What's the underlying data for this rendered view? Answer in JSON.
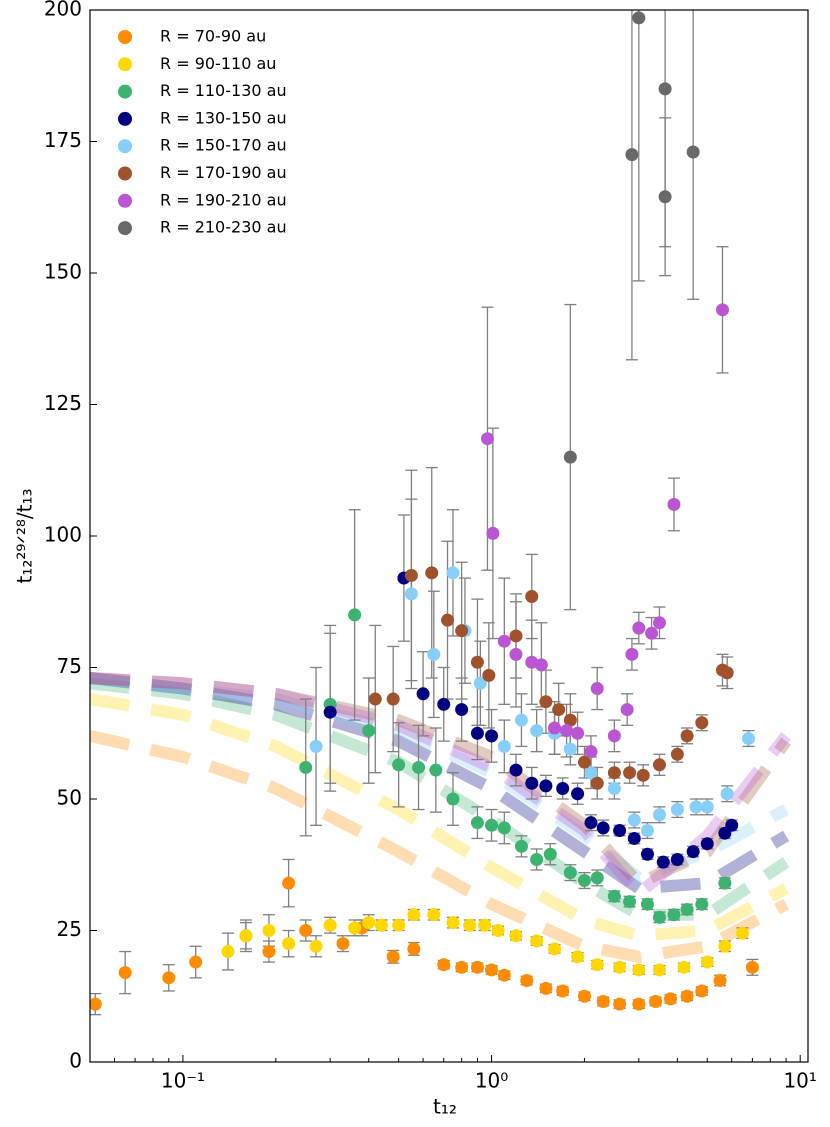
{
  "chart_data": {
    "type": "scatter",
    "xlabel": "t₁₂",
    "ylabel": "t₁₂²⁹ᐟ²⁸/t₁₃",
    "xscale": "log",
    "xlim": [
      0.05,
      10.6
    ],
    "ylim": [
      0,
      200
    ],
    "xticks": [
      {
        "value": 0.1,
        "label": "10⁻¹"
      },
      {
        "value": 1,
        "label": "10⁰"
      },
      {
        "value": 10,
        "label": "10¹"
      }
    ],
    "xminorticks": [
      0.06,
      0.07,
      0.08,
      0.09,
      0.2,
      0.3,
      0.4,
      0.5,
      0.6,
      0.7,
      0.8,
      0.9,
      2,
      3,
      4,
      5,
      6,
      7,
      8,
      9
    ],
    "yticks": [
      0,
      25,
      50,
      75,
      100,
      125,
      150,
      175,
      200
    ],
    "legend": "upper left",
    "fit_x": [
      0.05,
      0.1,
      0.2,
      0.5,
      1,
      2,
      3,
      5,
      9
    ],
    "series": [
      {
        "name": "R = 70-90 au",
        "color": "#ff8c00",
        "x": [
          0.052,
          0.065,
          0.09,
          0.11,
          0.16,
          0.19,
          0.22,
          0.25,
          0.33,
          0.38,
          0.48,
          0.56,
          0.7,
          0.8,
          0.9,
          1.0,
          1.1,
          1.3,
          1.5,
          1.7,
          2.0,
          2.3,
          2.6,
          3.0,
          3.4,
          3.8,
          4.3,
          4.8,
          5.5,
          7
        ],
        "values": [
          11,
          17,
          16,
          19,
          24,
          21,
          34,
          25,
          22.5,
          25.5,
          20,
          21.5,
          18.5,
          18,
          18,
          17.5,
          16.5,
          15.5,
          14,
          13.5,
          12.5,
          11.5,
          11,
          11,
          11.5,
          12,
          12.5,
          13.5,
          15.5,
          18
        ],
        "errors": [
          2,
          4,
          2.5,
          3,
          2.5,
          2,
          4.5,
          2,
          1.5,
          1.5,
          1.2,
          1.2,
          0.8,
          0.8,
          0.8,
          0.8,
          0.8,
          0.8,
          0.8,
          0.8,
          0.8,
          0.8,
          0.8,
          0.8,
          0.8,
          0.8,
          0.8,
          0.8,
          1,
          1.5
        ],
        "fit": [
          62,
          58,
          52,
          40,
          30,
          22,
          20,
          22,
          30
        ]
      },
      {
        "name": "R = 90-110 au",
        "color": "#ffd700",
        "x": [
          0.14,
          0.16,
          0.19,
          0.22,
          0.27,
          0.3,
          0.36,
          0.4,
          0.44,
          0.5,
          0.56,
          0.65,
          0.75,
          0.85,
          0.95,
          1.05,
          1.2,
          1.4,
          1.6,
          1.9,
          2.2,
          2.6,
          3.0,
          3.5,
          4.2,
          5,
          5.7,
          6.5
        ],
        "values": [
          21,
          24,
          25,
          22.5,
          22,
          26,
          25.5,
          26.5,
          26,
          26,
          28,
          28,
          26.5,
          26,
          26,
          25,
          24,
          23,
          21.5,
          20,
          18.5,
          18,
          17.5,
          17.5,
          18,
          19,
          22,
          24.5
        ],
        "errors": [
          3.5,
          3,
          3,
          2.5,
          2,
          1.5,
          1.5,
          1.5,
          1,
          1,
          1,
          1,
          1,
          1,
          1,
          0.8,
          0.8,
          0.8,
          0.8,
          0.8,
          0.8,
          0.8,
          0.8,
          0.8,
          0.8,
          0.8,
          1,
          1
        ],
        "fit": [
          69,
          66,
          60,
          48,
          37,
          27,
          24,
          25,
          33
        ]
      },
      {
        "name": "R = 110-130 au",
        "color": "#3cb371",
        "x": [
          0.25,
          0.3,
          0.36,
          0.4,
          0.5,
          0.58,
          0.66,
          0.75,
          0.9,
          1.0,
          1.1,
          1.25,
          1.4,
          1.55,
          1.8,
          2.0,
          2.2,
          2.5,
          2.8,
          3.2,
          3.5,
          3.9,
          4.3,
          4.8,
          5.7
        ],
        "values": [
          56,
          68,
          85,
          63,
          56.5,
          56,
          55.5,
          50,
          45.5,
          45,
          44.5,
          41,
          38.5,
          39.5,
          36,
          34.5,
          35,
          31.5,
          30.5,
          30,
          27.5,
          28,
          29,
          30,
          34
        ],
        "errors": [
          13,
          15,
          20,
          10,
          8,
          8,
          8,
          5,
          3,
          3,
          3,
          2,
          2,
          2,
          1.5,
          1.5,
          1.5,
          1,
          1,
          1,
          1,
          1,
          1,
          1,
          1
        ],
        "fit": [
          72,
          70,
          66,
          57,
          46,
          34,
          28,
          28,
          38
        ]
      },
      {
        "name": "R = 130-150 au",
        "color": "#000080",
        "x": [
          0.3,
          0.52,
          0.6,
          0.7,
          0.8,
          0.9,
          1.0,
          1.2,
          1.35,
          1.5,
          1.7,
          1.9,
          2.1,
          2.3,
          2.6,
          2.9,
          3.2,
          3.6,
          4.0,
          4.5,
          5,
          5.7,
          6
        ],
        "values": [
          66.5,
          92,
          70,
          68,
          67,
          62.5,
          62,
          55.5,
          53,
          52.5,
          52,
          51,
          45.5,
          44.5,
          44,
          42.5,
          39.5,
          38,
          38.5,
          40,
          41.5,
          43.5,
          45
        ],
        "errors": [
          15,
          12,
          8,
          7,
          6,
          5,
          5,
          3,
          3,
          2,
          2,
          2,
          1.5,
          1.5,
          1,
          1,
          1,
          1,
          1,
          1,
          1,
          1,
          1
        ],
        "fit": [
          73,
          71,
          68,
          61,
          52,
          40,
          33,
          34,
          43
        ]
      },
      {
        "name": "R = 150-170 au",
        "color": "#87cefa",
        "x": [
          0.27,
          0.55,
          0.65,
          0.75,
          0.82,
          0.92,
          1.1,
          1.25,
          1.4,
          1.6,
          1.8,
          2.1,
          2.5,
          2.9,
          3.2,
          3.5,
          4.0,
          4.6,
          5.0,
          5.8,
          6.8
        ],
        "values": [
          60,
          89,
          77.5,
          93,
          82,
          72,
          60,
          65,
          63,
          62.5,
          59.5,
          55,
          52,
          46,
          44,
          47,
          48,
          48.5,
          48.5,
          51,
          61.5
        ],
        "errors": [
          15,
          18,
          12,
          12,
          10,
          8,
          5,
          5,
          4,
          4,
          3,
          3,
          2,
          1.5,
          1.5,
          1.5,
          1.5,
          1.5,
          1.5,
          1.5,
          1.5
        ],
        "fit": [
          73,
          71,
          69,
          63,
          55,
          43,
          35,
          40,
          48
        ]
      },
      {
        "name": "R = 170-190 au",
        "color": "#a0522d",
        "x": [
          0.42,
          0.48,
          0.55,
          0.64,
          0.72,
          0.8,
          0.9,
          0.98,
          1.2,
          1.35,
          1.5,
          1.65,
          1.8,
          2,
          2.2,
          2.5,
          2.8,
          3.1,
          3.5,
          4.0,
          4.3,
          4.8,
          5.6,
          5.8
        ],
        "values": [
          69,
          69,
          92.5,
          93,
          84,
          82,
          76,
          73.5,
          81,
          88.5,
          68.5,
          67,
          65,
          57,
          53,
          55,
          55,
          54.5,
          56.5,
          58.5,
          62,
          64.5,
          74.5,
          74
        ],
        "errors": [
          14,
          10,
          20,
          20,
          15,
          13,
          12,
          10,
          8,
          8,
          6,
          5,
          5,
          3,
          3,
          2,
          2,
          2,
          2,
          1.5,
          1.5,
          1.5,
          3,
          3
        ],
        "fit": [
          73,
          72,
          70,
          65,
          58,
          45,
          34,
          40,
          61
        ]
      },
      {
        "name": "R = 190-210 au",
        "color": "#ba55d3",
        "x": [
          0.97,
          1.01,
          1.1,
          1.2,
          1.35,
          1.45,
          1.6,
          1.75,
          1.9,
          2.1,
          2.2,
          2.5,
          2.75,
          2.85,
          3.0,
          3.3,
          3.5,
          3.9,
          5.6
        ],
        "values": [
          118.5,
          100.5,
          80,
          77.5,
          76,
          75.5,
          63.5,
          63,
          62.5,
          59,
          71,
          62,
          67,
          77.5,
          82.5,
          81.5,
          83.5,
          106,
          143
        ],
        "errors": [
          25,
          20,
          12,
          10,
          8,
          8,
          5,
          5,
          4,
          3,
          4,
          3,
          3,
          3,
          3,
          3,
          3,
          5,
          12
        ],
        "fit": [
          73,
          72,
          70,
          64,
          56,
          44,
          32,
          43,
          62
        ]
      },
      {
        "name": "R = 210-230 au",
        "color": "#696969",
        "x": [
          1.8,
          2.85,
          3.0,
          3.65,
          3.65,
          4.5
        ],
        "values": [
          115,
          172.5,
          198.5,
          185,
          164.5,
          173
        ],
        "errors": [
          29,
          39,
          50,
          30,
          15,
          28
        ]
      }
    ]
  }
}
